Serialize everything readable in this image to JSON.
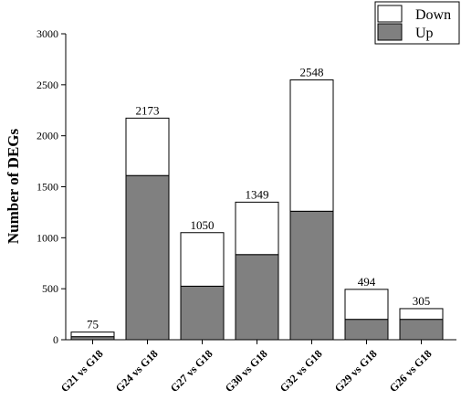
{
  "chart_data": {
    "type": "bar",
    "stacked": true,
    "categories": [
      "G21 vs G18",
      "G24 vs G18",
      "G27 vs G18",
      "G30 vs G18",
      "G32 vs G18",
      "G29 vs G18",
      "G26 vs G18"
    ],
    "series": [
      {
        "name": "Up",
        "values": [
          30,
          1610,
          525,
          835,
          1260,
          200,
          200
        ],
        "color": "#808080"
      },
      {
        "name": "Down",
        "values": [
          45,
          563,
          525,
          514,
          1288,
          294,
          105
        ],
        "color": "#ffffff"
      }
    ],
    "totals": [
      "75",
      "2173",
      "1050",
      "1349",
      "2548",
      "494",
      "305"
    ],
    "ylabel": "Number of DEGs",
    "xlabel": "",
    "ylim": [
      0,
      3000
    ],
    "yticks": [
      "0",
      "500",
      "1000",
      "1500",
      "2000",
      "2500",
      "3000"
    ],
    "grid": false,
    "legend_position": "top-right"
  }
}
